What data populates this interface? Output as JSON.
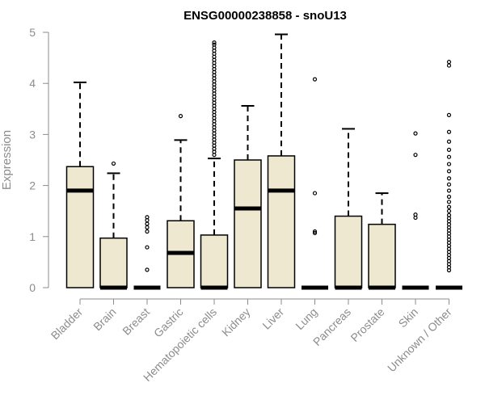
{
  "chart_data": {
    "type": "boxplot",
    "title": "ENSG00000238858 - snoU13",
    "xlabel": "",
    "ylabel": "Expression",
    "ylim": [
      0,
      5
    ],
    "yticks": [
      0,
      1,
      2,
      3,
      4,
      5
    ],
    "colors": {
      "box_fill": "#EEE8D0",
      "box_stroke": "#000000",
      "axis": "#8c8c8c"
    },
    "categories": [
      "Bladder",
      "Brain",
      "Breast",
      "Gastric",
      "Hematopoietic cells",
      "Kidney",
      "Liver",
      "Lung",
      "Pancreas",
      "Prostate",
      "Skin",
      "Unknown / Other"
    ],
    "boxes": [
      {
        "name": "Bladder",
        "whisker_low": 0,
        "q1": 0,
        "median": 1.9,
        "q3": 2.37,
        "whisker_high": 4.02,
        "outliers": []
      },
      {
        "name": "Brain",
        "whisker_low": 0,
        "q1": 0,
        "median": 0,
        "q3": 0.97,
        "whisker_high": 2.24,
        "outliers": [
          2.43
        ]
      },
      {
        "name": "Breast",
        "whisker_low": 0,
        "q1": 0,
        "median": 0,
        "q3": 0,
        "whisker_high": 0,
        "outliers": [
          0.35,
          0.79,
          1.1,
          1.18,
          1.25,
          1.32,
          1.38
        ]
      },
      {
        "name": "Gastric",
        "whisker_low": 0,
        "q1": 0,
        "median": 0.68,
        "q3": 1.31,
        "whisker_high": 2.89,
        "outliers": [
          3.36
        ]
      },
      {
        "name": "Hematopoietic cells",
        "whisker_low": 0,
        "q1": 0,
        "median": 0,
        "q3": 1.03,
        "whisker_high": 2.53,
        "outliers": [
          2.6,
          2.66,
          2.72,
          2.78,
          2.84,
          2.9,
          2.96,
          3.02,
          3.08,
          3.14,
          3.2,
          3.26,
          3.32,
          3.38,
          3.44,
          3.5,
          3.56,
          3.62,
          3.68,
          3.74,
          3.8,
          3.86,
          3.92,
          3.98,
          4.04,
          4.1,
          4.16,
          4.22,
          4.28,
          4.34,
          4.4,
          4.46,
          4.52,
          4.58,
          4.64,
          4.7,
          4.76,
          4.8
        ]
      },
      {
        "name": "Kidney",
        "whisker_low": 0,
        "q1": 0,
        "median": 1.55,
        "q3": 2.5,
        "whisker_high": 3.56,
        "outliers": []
      },
      {
        "name": "Liver",
        "whisker_low": 0,
        "q1": 0,
        "median": 1.9,
        "q3": 2.58,
        "whisker_high": 4.96,
        "outliers": []
      },
      {
        "name": "Lung",
        "whisker_low": 0,
        "q1": 0,
        "median": 0,
        "q3": 0,
        "whisker_high": 0,
        "outliers": [
          1.07,
          1.1,
          1.85,
          4.08
        ]
      },
      {
        "name": "Pancreas",
        "whisker_low": 0,
        "q1": 0,
        "median": 0,
        "q3": 1.4,
        "whisker_high": 3.11,
        "outliers": []
      },
      {
        "name": "Prostate",
        "whisker_low": 0,
        "q1": 0,
        "median": 0,
        "q3": 1.24,
        "whisker_high": 1.85,
        "outliers": []
      },
      {
        "name": "Skin",
        "whisker_low": 0,
        "q1": 0,
        "median": 0,
        "q3": 0,
        "whisker_high": 0,
        "outliers": [
          1.37,
          1.43,
          2.6,
          3.02
        ]
      },
      {
        "name": "Unknown / Other",
        "whisker_low": 0,
        "q1": 0,
        "median": 0,
        "q3": 0,
        "whisker_high": 0,
        "outliers": [
          0.34,
          0.4,
          0.46,
          0.52,
          0.58,
          0.64,
          0.7,
          0.76,
          0.82,
          0.88,
          0.94,
          1.0,
          1.06,
          1.12,
          1.18,
          1.24,
          1.3,
          1.36,
          1.42,
          1.5,
          1.58,
          1.68,
          1.78,
          1.9,
          2.02,
          2.14,
          2.28,
          2.42,
          2.56,
          2.7,
          2.86,
          3.05,
          3.38,
          4.35,
          4.42
        ]
      }
    ]
  }
}
